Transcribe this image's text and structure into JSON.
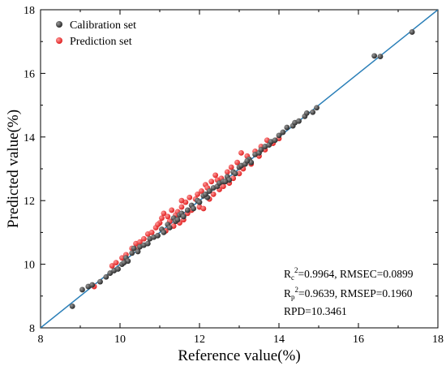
{
  "chart_data": {
    "type": "scatter",
    "title": "",
    "xlabel": "Reference value(%)",
    "ylabel": "Predicted value(%)",
    "xlim": [
      8,
      18
    ],
    "ylim": [
      8,
      18
    ],
    "x_ticks": [
      "8",
      "10",
      "12",
      "14",
      "16",
      "18"
    ],
    "y_ticks": [
      "8",
      "10",
      "12",
      "14",
      "16",
      "18"
    ],
    "grid": false,
    "legend_position": "top-left",
    "fit_line": {
      "from": [
        8,
        8
      ],
      "to": [
        18,
        18
      ],
      "color": "#2a7fb8"
    },
    "series": [
      {
        "name": "Calibration set",
        "color": "#4a4a4a",
        "points": [
          [
            8.8,
            8.68
          ],
          [
            9.05,
            9.2
          ],
          [
            9.2,
            9.3
          ],
          [
            9.3,
            9.35
          ],
          [
            9.5,
            9.45
          ],
          [
            9.65,
            9.6
          ],
          [
            9.75,
            9.72
          ],
          [
            9.85,
            9.8
          ],
          [
            9.95,
            9.85
          ],
          [
            10.05,
            10.0
          ],
          [
            10.15,
            10.2
          ],
          [
            10.2,
            10.1
          ],
          [
            10.3,
            10.35
          ],
          [
            10.35,
            10.5
          ],
          [
            10.45,
            10.4
          ],
          [
            10.5,
            10.55
          ],
          [
            10.6,
            10.6
          ],
          [
            10.7,
            10.65
          ],
          [
            10.75,
            10.8
          ],
          [
            10.85,
            10.85
          ],
          [
            10.95,
            10.9
          ],
          [
            11.05,
            11.1
          ],
          [
            11.1,
            11.0
          ],
          [
            11.2,
            11.25
          ],
          [
            11.25,
            11.15
          ],
          [
            11.35,
            11.45
          ],
          [
            11.4,
            11.35
          ],
          [
            11.5,
            11.55
          ],
          [
            11.55,
            11.6
          ],
          [
            11.6,
            11.5
          ],
          [
            11.7,
            11.7
          ],
          [
            11.8,
            11.85
          ],
          [
            11.85,
            11.75
          ],
          [
            11.95,
            12.0
          ],
          [
            12.0,
            11.95
          ],
          [
            12.1,
            12.15
          ],
          [
            12.2,
            12.1
          ],
          [
            12.25,
            12.3
          ],
          [
            12.35,
            12.4
          ],
          [
            12.45,
            12.45
          ],
          [
            12.5,
            12.55
          ],
          [
            12.6,
            12.6
          ],
          [
            12.7,
            12.75
          ],
          [
            12.75,
            12.65
          ],
          [
            12.85,
            12.9
          ],
          [
            12.9,
            12.85
          ],
          [
            13.0,
            13.05
          ],
          [
            13.05,
            13.1
          ],
          [
            13.15,
            13.15
          ],
          [
            13.25,
            13.3
          ],
          [
            13.3,
            13.2
          ],
          [
            13.4,
            13.45
          ],
          [
            13.5,
            13.5
          ],
          [
            13.55,
            13.6
          ],
          [
            13.65,
            13.7
          ],
          [
            13.75,
            13.75
          ],
          [
            13.8,
            13.85
          ],
          [
            13.9,
            13.9
          ],
          [
            14.0,
            14.05
          ],
          [
            14.1,
            14.15
          ],
          [
            14.2,
            14.3
          ],
          [
            14.35,
            14.35
          ],
          [
            14.4,
            14.45
          ],
          [
            14.5,
            14.5
          ],
          [
            14.65,
            14.65
          ],
          [
            14.7,
            14.75
          ],
          [
            14.85,
            14.78
          ],
          [
            14.95,
            14.92
          ],
          [
            16.4,
            16.55
          ],
          [
            16.55,
            16.53
          ],
          [
            17.35,
            17.3
          ],
          [
            11.45,
            11.4
          ],
          [
            12.15,
            12.2
          ],
          [
            13.2,
            13.25
          ],
          [
            10.1,
            10.05
          ],
          [
            12.65,
            12.6
          ]
        ]
      },
      {
        "name": "Prediction set",
        "color": "#ff4040",
        "points": [
          [
            9.35,
            9.3
          ],
          [
            9.8,
            9.95
          ],
          [
            9.9,
            10.05
          ],
          [
            10.05,
            10.2
          ],
          [
            10.15,
            10.3
          ],
          [
            10.3,
            10.5
          ],
          [
            10.4,
            10.65
          ],
          [
            10.5,
            10.7
          ],
          [
            10.6,
            10.8
          ],
          [
            10.7,
            10.95
          ],
          [
            10.8,
            11.0
          ],
          [
            10.9,
            11.15
          ],
          [
            11.0,
            11.3
          ],
          [
            11.05,
            11.45
          ],
          [
            11.1,
            11.6
          ],
          [
            11.15,
            11.05
          ],
          [
            11.2,
            11.5
          ],
          [
            11.25,
            11.35
          ],
          [
            11.3,
            11.7
          ],
          [
            11.35,
            11.2
          ],
          [
            11.4,
            11.55
          ],
          [
            11.45,
            11.65
          ],
          [
            11.5,
            11.3
          ],
          [
            11.55,
            11.8
          ],
          [
            11.6,
            11.4
          ],
          [
            11.65,
            11.95
          ],
          [
            11.7,
            11.6
          ],
          [
            11.75,
            12.1
          ],
          [
            11.8,
            11.7
          ],
          [
            11.9,
            12.05
          ],
          [
            11.95,
            12.2
          ],
          [
            12.0,
            11.8
          ],
          [
            12.05,
            12.3
          ],
          [
            12.1,
            11.75
          ],
          [
            12.15,
            12.5
          ],
          [
            12.25,
            12.05
          ],
          [
            12.3,
            12.6
          ],
          [
            12.35,
            12.2
          ],
          [
            12.4,
            12.8
          ],
          [
            12.5,
            12.35
          ],
          [
            12.55,
            12.7
          ],
          [
            12.6,
            12.45
          ],
          [
            12.7,
            12.9
          ],
          [
            12.75,
            12.55
          ],
          [
            12.8,
            13.05
          ],
          [
            12.85,
            12.7
          ],
          [
            12.95,
            13.2
          ],
          [
            13.0,
            12.85
          ],
          [
            13.05,
            13.5
          ],
          [
            13.1,
            13.0
          ],
          [
            13.2,
            13.4
          ],
          [
            13.3,
            13.15
          ],
          [
            13.4,
            13.55
          ],
          [
            13.5,
            13.4
          ],
          [
            13.55,
            13.7
          ],
          [
            13.65,
            13.6
          ],
          [
            13.7,
            13.9
          ],
          [
            13.85,
            13.8
          ],
          [
            14.0,
            13.95
          ],
          [
            11.55,
            12.0
          ],
          [
            12.45,
            12.65
          ],
          [
            10.45,
            10.5
          ],
          [
            10.95,
            11.25
          ],
          [
            12.2,
            12.4
          ]
        ]
      }
    ],
    "annotations": [
      {
        "prefix": "R",
        "sub": "c",
        "sup": "2",
        "rest": "=0.9964, RMSEC=0.0899"
      },
      {
        "prefix": "R",
        "sub": "p",
        "sup": "2",
        "rest": "=0.9639, RMSEP=0.1960"
      },
      {
        "prefix": "",
        "sub": "",
        "sup": "",
        "rest": "RPD=10.3461"
      }
    ]
  }
}
